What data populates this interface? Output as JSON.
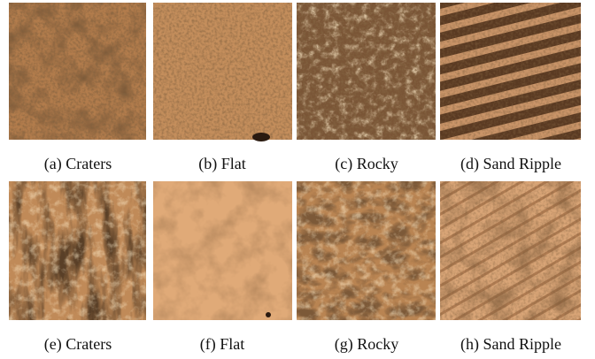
{
  "figure": {
    "panels": [
      {
        "caption": "(a) Craters"
      },
      {
        "caption": "(b) Flat"
      },
      {
        "caption": "(c) Rocky"
      },
      {
        "caption": "(d) Sand Ripple"
      },
      {
        "caption": "(e) Craters"
      },
      {
        "caption": "(f) Flat"
      },
      {
        "caption": "(g) Rocky"
      },
      {
        "caption": "(h) Sand Ripple"
      }
    ]
  }
}
